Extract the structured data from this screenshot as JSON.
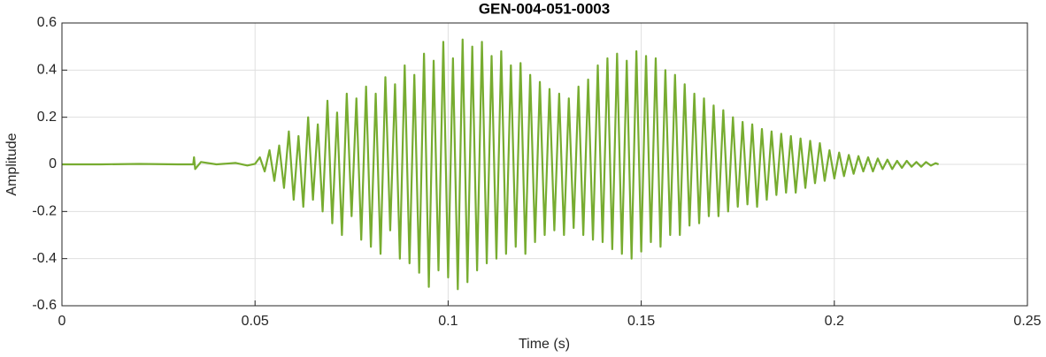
{
  "chart_data": {
    "type": "line",
    "title": "GEN-004-051-0003",
    "xlabel": "Time (s)",
    "ylabel": "Amplitude",
    "color": "#77ac30",
    "grid": true,
    "xlim": [
      0,
      0.25
    ],
    "xticks": [
      0,
      0.05,
      0.1,
      0.15,
      0.2,
      0.25
    ],
    "ylim": [
      -0.6,
      0.6
    ],
    "yticks": [
      -0.6,
      -0.4,
      -0.2,
      0,
      0.2,
      0.4,
      0.6
    ],
    "x": [
      0,
      0.01,
      0.02,
      0.03,
      0.034,
      0.0342,
      0.0345,
      0.036,
      0.04,
      0.045,
      0.048,
      0.05,
      0.05125,
      0.0525,
      0.05375,
      0.055,
      0.05625,
      0.0575,
      0.05875,
      0.06,
      0.06125,
      0.0625,
      0.06375,
      0.065,
      0.06625,
      0.0675,
      0.06875,
      0.07,
      0.07125,
      0.0725,
      0.07375,
      0.075,
      0.07625,
      0.0775,
      0.07875,
      0.08,
      0.08125,
      0.0825,
      0.08375,
      0.085,
      0.08625,
      0.0875,
      0.08875,
      0.09,
      0.09125,
      0.0925,
      0.09375,
      0.095,
      0.09625,
      0.0975,
      0.09875,
      0.1,
      0.10125,
      0.1025,
      0.10375,
      0.105,
      0.10625,
      0.1075,
      0.10875,
      0.11,
      0.11125,
      0.1125,
      0.11375,
      0.115,
      0.11625,
      0.1175,
      0.11875,
      0.12,
      0.12125,
      0.1225,
      0.12375,
      0.125,
      0.12625,
      0.1275,
      0.12875,
      0.13,
      0.13125,
      0.1325,
      0.13375,
      0.135,
      0.13625,
      0.1375,
      0.13875,
      0.14,
      0.14125,
      0.1425,
      0.14375,
      0.145,
      0.14625,
      0.1475,
      0.14875,
      0.15,
      0.15125,
      0.1525,
      0.15375,
      0.155,
      0.15625,
      0.1575,
      0.15875,
      0.16,
      0.16125,
      0.1625,
      0.16375,
      0.165,
      0.16625,
      0.1675,
      0.16875,
      0.17,
      0.17125,
      0.1725,
      0.17375,
      0.175,
      0.17625,
      0.1775,
      0.17875,
      0.18,
      0.18125,
      0.1825,
      0.18375,
      0.185,
      0.18625,
      0.1875,
      0.18875,
      0.19,
      0.19125,
      0.1925,
      0.19375,
      0.195,
      0.19625,
      0.1975,
      0.19875,
      0.2,
      0.20125,
      0.2025,
      0.20375,
      0.205,
      0.20625,
      0.2075,
      0.20875,
      0.21,
      0.21125,
      0.2125,
      0.21375,
      0.215,
      0.21625,
      0.2175,
      0.21875,
      0.22,
      0.22125,
      0.2225,
      0.22375,
      0.225,
      0.22625,
      0.227
    ],
    "values": [
      0,
      0,
      0.002,
      0,
      0,
      0.03,
      -0.02,
      0.01,
      0,
      0.006,
      -0.005,
      0.002,
      0.03,
      -0.03,
      0.06,
      -0.07,
      0.08,
      -0.1,
      0.14,
      -0.15,
      0.12,
      -0.18,
      0.2,
      -0.15,
      0.17,
      -0.2,
      0.27,
      -0.25,
      0.22,
      -0.3,
      0.3,
      -0.22,
      0.28,
      -0.32,
      0.33,
      -0.35,
      0.3,
      -0.38,
      0.37,
      -0.28,
      0.34,
      -0.4,
      0.42,
      -0.42,
      0.38,
      -0.46,
      0.47,
      -0.52,
      0.44,
      -0.45,
      0.52,
      -0.48,
      0.45,
      -0.53,
      0.53,
      -0.5,
      0.5,
      -0.45,
      0.52,
      -0.42,
      0.46,
      -0.4,
      0.48,
      -0.38,
      0.42,
      -0.35,
      0.43,
      -0.38,
      0.38,
      -0.33,
      0.35,
      -0.3,
      0.32,
      -0.28,
      0.3,
      -0.3,
      0.28,
      -0.27,
      0.33,
      -0.3,
      0.36,
      -0.32,
      0.42,
      -0.33,
      0.45,
      -0.36,
      0.47,
      -0.38,
      0.44,
      -0.4,
      0.48,
      -0.37,
      0.46,
      -0.33,
      0.45,
      -0.35,
      0.4,
      -0.3,
      0.38,
      -0.3,
      0.34,
      -0.26,
      0.3,
      -0.25,
      0.28,
      -0.22,
      0.25,
      -0.22,
      0.23,
      -0.2,
      0.2,
      -0.18,
      0.18,
      -0.17,
      0.17,
      -0.18,
      0.15,
      -0.15,
      0.14,
      -0.13,
      0.13,
      -0.12,
      0.12,
      -0.12,
      0.11,
      -0.1,
      0.1,
      -0.08,
      0.09,
      -0.07,
      0.06,
      -0.06,
      0.05,
      -0.05,
      0.04,
      -0.04,
      0.035,
      -0.03,
      0.03,
      -0.03,
      0.025,
      -0.02,
      0.02,
      -0.02,
      0.015,
      -0.015,
      0.015,
      -0.01,
      0.01,
      -0.01,
      0.01,
      -0.005,
      0.005,
      0
    ]
  }
}
